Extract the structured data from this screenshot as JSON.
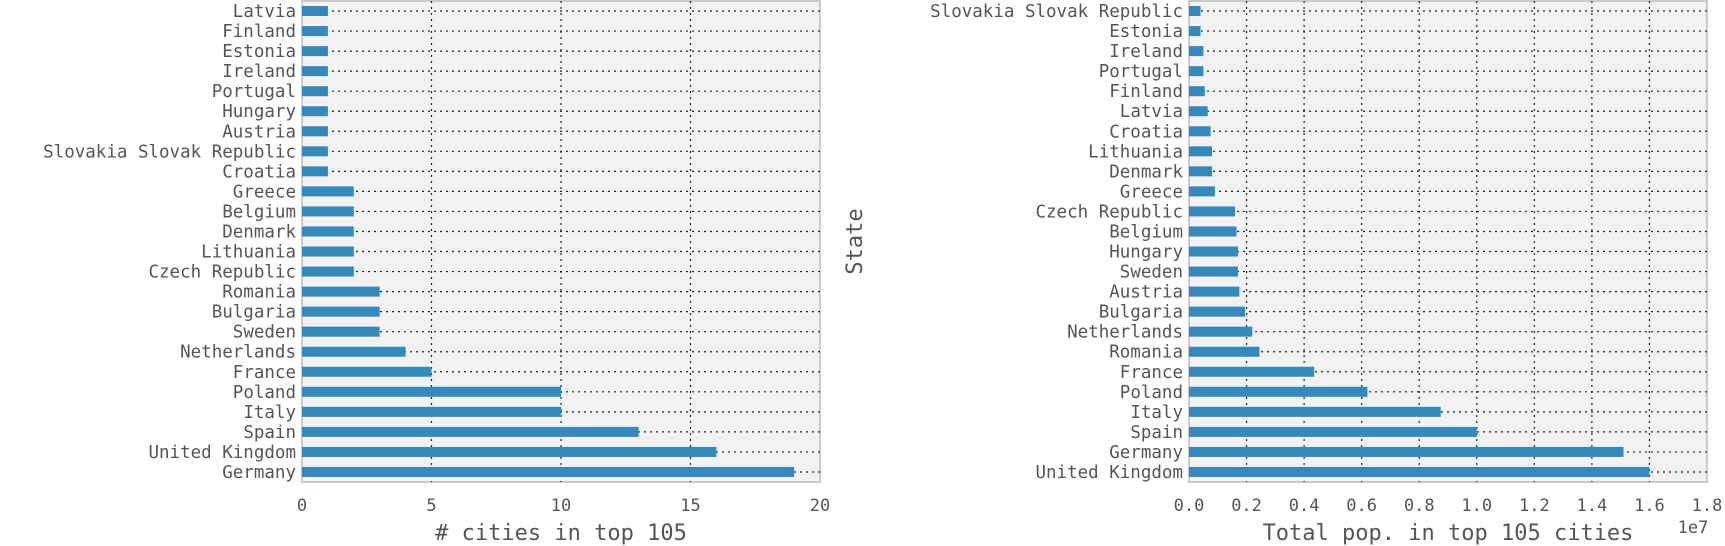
{
  "chart_data": [
    {
      "type": "bar",
      "orientation": "horizontal",
      "xlabel": "# cities in top 105",
      "ylabel": "",
      "xlim": [
        0,
        20
      ],
      "xticks": [
        "0",
        "5",
        "10",
        "15",
        "20"
      ],
      "grid": true,
      "categories": [
        "Latvia",
        "Finland",
        "Estonia",
        "Ireland",
        "Portugal",
        "Hungary",
        "Austria",
        "Slovakia Slovak Republic",
        "Croatia",
        "Greece",
        "Belgium",
        "Denmark",
        "Lithuania",
        "Czech Republic",
        "Romania",
        "Bulgaria",
        "Sweden",
        "Netherlands",
        "France",
        "Poland",
        "Italy",
        "Spain",
        "United Kingdom",
        "Germany"
      ],
      "values": [
        1,
        1,
        1,
        1,
        1,
        1,
        1,
        1,
        1,
        2,
        2,
        2,
        2,
        2,
        3,
        3,
        3,
        4,
        5,
        10,
        10,
        13,
        16,
        19
      ],
      "color": "#348abd"
    },
    {
      "type": "bar",
      "orientation": "horizontal",
      "xlabel": "Total pop. in top 105 cities",
      "ylabel": "State",
      "offset_text": "1e7",
      "xlim": [
        0,
        1.8
      ],
      "xticks": [
        "0.0",
        "0.2",
        "0.4",
        "0.6",
        "0.8",
        "1.0",
        "1.2",
        "1.4",
        "1.6",
        "1.8"
      ],
      "grid": true,
      "categories": [
        "Slovakia Slovak Republic",
        "Estonia",
        "Ireland",
        "Portugal",
        "Finland",
        "Latvia",
        "Croatia",
        "Lithuania",
        "Denmark",
        "Greece",
        "Czech Republic",
        "Belgium",
        "Hungary",
        "Sweden",
        "Austria",
        "Bulgaria",
        "Netherlands",
        "Romania",
        "France",
        "Poland",
        "Italy",
        "Spain",
        "Germany",
        "United Kingdom"
      ],
      "values": [
        0.04,
        0.04,
        0.05,
        0.05,
        0.055,
        0.065,
        0.075,
        0.08,
        0.08,
        0.09,
        0.16,
        0.165,
        0.17,
        0.17,
        0.175,
        0.195,
        0.22,
        0.245,
        0.435,
        0.62,
        0.875,
        1.0,
        1.51,
        1.6
      ],
      "color": "#348abd"
    }
  ]
}
